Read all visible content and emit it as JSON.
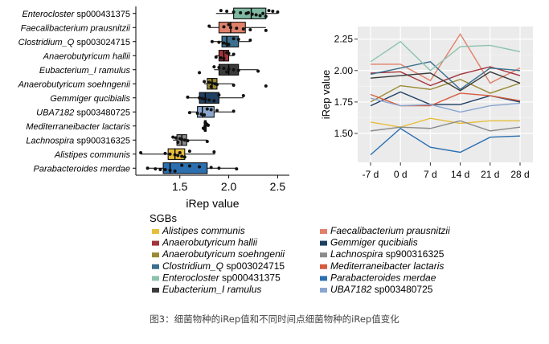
{
  "caption": "图3：细菌物种的iRep值和不同时间点细菌物种的iRep值变化",
  "legend_title": "SGBs",
  "chart_data": [
    {
      "type": "box",
      "orientation": "horizontal",
      "xlabel": "iRep value",
      "xlim": [
        1.05,
        2.62
      ],
      "xticks": [
        "1.5",
        "2.0",
        "2.5"
      ],
      "categories": [
        "Enterocloster sp000431375",
        "Faecalibacterium prausnitzii",
        "Clostridium_Q sp003024715",
        "Anaerobutyricum hallii",
        "Eubacterium_I ramulus",
        "Anaerobutyricum soehngenii",
        "Gemmiger qucibialis",
        "UBA7182 sp003480725",
        "Mediterraneibacter lactaris",
        "Lachnospira sp900316325",
        "Alistipes communis",
        "Parabacteroides merdae"
      ],
      "boxes": [
        {
          "min": 1.87,
          "q1": 2.05,
          "median": 2.23,
          "q3": 2.38,
          "max": 2.5
        },
        {
          "min": 1.8,
          "q1": 1.9,
          "median": 2.02,
          "q3": 2.17,
          "max": 2.38
        },
        {
          "min": 1.83,
          "q1": 1.93,
          "median": 1.98,
          "q3": 2.1,
          "max": 2.22
        },
        {
          "min": 1.87,
          "q1": 1.9,
          "median": 1.95,
          "q3": 2.0,
          "max": 2.05
        },
        {
          "min": 1.85,
          "q1": 1.9,
          "median": 2.0,
          "q3": 2.1,
          "max": 2.3
        },
        {
          "min": 1.75,
          "q1": 1.78,
          "median": 1.83,
          "q3": 1.88,
          "max": 2.05
        },
        {
          "min": 1.58,
          "q1": 1.7,
          "median": 1.76,
          "q3": 1.9,
          "max": 2.15
        },
        {
          "min": 1.6,
          "q1": 1.68,
          "median": 1.73,
          "q3": 1.85,
          "max": 2.05
        },
        {
          "min": 1.74,
          "q1": 1.75,
          "median": 1.76,
          "q3": 1.77,
          "max": 1.79
        },
        {
          "min": 1.43,
          "q1": 1.47,
          "median": 1.52,
          "q3": 1.57,
          "max": 1.78
        },
        {
          "min": 1.1,
          "q1": 1.38,
          "median": 1.45,
          "q3": 1.55,
          "max": 1.86
        },
        {
          "min": 1.17,
          "q1": 1.33,
          "median": 1.4,
          "q3": 1.78,
          "max": 2.08
        }
      ],
      "points": [
        [
          1.92,
          1.98,
          2.05,
          2.12,
          2.18,
          2.24,
          2.28,
          2.32,
          2.38,
          2.41,
          2.45,
          2.5,
          2.2,
          2.35
        ],
        [
          1.8,
          1.95,
          2.02,
          2.08,
          2.15,
          2.22,
          2.38,
          2.0
        ],
        [
          1.83,
          1.9,
          1.95,
          1.98,
          2.0,
          2.05,
          2.1,
          2.22
        ],
        [
          1.87,
          1.92,
          1.95,
          1.98,
          2.0,
          2.05
        ],
        [
          1.7,
          1.85,
          1.9,
          1.95,
          2.0,
          2.05,
          2.1,
          2.3,
          1.98
        ],
        [
          1.75,
          1.8,
          1.83,
          1.86,
          1.88,
          2.05,
          2.38,
          1.82
        ],
        [
          1.58,
          1.7,
          1.73,
          1.76,
          1.8,
          1.85,
          1.9,
          2.15
        ],
        [
          1.6,
          1.68,
          1.72,
          1.75,
          1.78,
          1.82,
          1.88,
          2.05
        ],
        [
          1.74,
          1.75,
          1.76,
          1.77,
          1.78,
          1.79,
          1.76
        ],
        [
          1.43,
          1.46,
          1.5,
          1.52,
          1.55,
          1.58,
          1.78,
          1.48
        ],
        [
          1.1,
          1.35,
          1.4,
          1.45,
          1.48,
          1.52,
          1.55,
          1.6,
          1.85,
          1.5
        ],
        [
          1.17,
          1.25,
          1.35,
          1.4,
          1.45,
          1.52,
          1.6,
          1.7,
          1.82,
          1.9,
          2.08,
          1.3
        ]
      ],
      "colors": [
        "#7fb9a2",
        "#e1806a",
        "#3a6f8e",
        "#a3343a",
        "#3b3b3b",
        "#9a8a35",
        "#1f3f63",
        "#8aa6cf",
        "#cfcfcf",
        "#8b8b8b",
        "#e6be3c",
        "#2b6fb0"
      ]
    },
    {
      "type": "line",
      "ylabel": "iRep value",
      "x": [
        "-7 d",
        "0 d",
        "7 d",
        "14 d",
        "21 d",
        "28 d"
      ],
      "ylim": [
        1.27,
        2.35
      ],
      "yticks": [
        "1.50",
        "1.75",
        "2.00",
        "2.25"
      ],
      "grid": true,
      "series": [
        {
          "name": "Alistipes communis",
          "color": "#e6be3c",
          "values": [
            1.59,
            1.55,
            1.62,
            1.58,
            1.6,
            1.6
          ]
        },
        {
          "name": "Faecalibacterium prausnitzii",
          "color": "#e1806a",
          "values": [
            2.05,
            2.05,
            1.92,
            2.29,
            1.9,
            2.02
          ]
        },
        {
          "name": "Anaerobutyricum hallii",
          "color": "#a3343a",
          "values": [
            1.98,
            1.99,
            1.88,
            1.97,
            2.03,
            1.96
          ]
        },
        {
          "name": "Gemmiger qucibialis",
          "color": "#1f3f63",
          "values": [
            1.72,
            1.83,
            1.73,
            1.73,
            1.8,
            1.75
          ]
        },
        {
          "name": "Anaerobutyricum soehngenii",
          "color": "#9a8a35",
          "values": [
            1.75,
            1.88,
            1.85,
            1.93,
            1.82,
            1.9
          ]
        },
        {
          "name": "Lachnospira sp900316325",
          "color": "#8b8b8b",
          "values": [
            1.52,
            1.55,
            1.54,
            1.6,
            1.52,
            1.55
          ]
        },
        {
          "name": "Clostridium_Q sp003024715",
          "color": "#3a6f8e",
          "values": [
            1.97,
            2.02,
            2.07,
            1.85,
            2.02,
            2.0
          ]
        },
        {
          "name": "Mediterraneibacter lactaris",
          "color": "#d65b3e",
          "values": [
            1.81,
            1.72,
            1.72,
            1.82,
            1.8,
            1.76
          ]
        },
        {
          "name": "Enterocloster sp000431375",
          "color": "#8dc3ad",
          "values": [
            2.07,
            2.23,
            2.0,
            2.19,
            2.2,
            2.15
          ]
        },
        {
          "name": "Parabacteroides merdae",
          "color": "#2b6fb0",
          "values": [
            1.33,
            1.54,
            1.39,
            1.35,
            1.47,
            1.48
          ]
        },
        {
          "name": "Eubacterium_I ramulus",
          "color": "#3b3b3b",
          "values": [
            1.94,
            1.96,
            1.98,
            1.84,
            1.99,
            1.9
          ]
        },
        {
          "name": "UBA7182 sp003480725",
          "color": "#8aa6cf",
          "values": [
            1.78,
            1.72,
            1.73,
            1.67,
            1.72,
            1.74
          ]
        }
      ]
    }
  ]
}
